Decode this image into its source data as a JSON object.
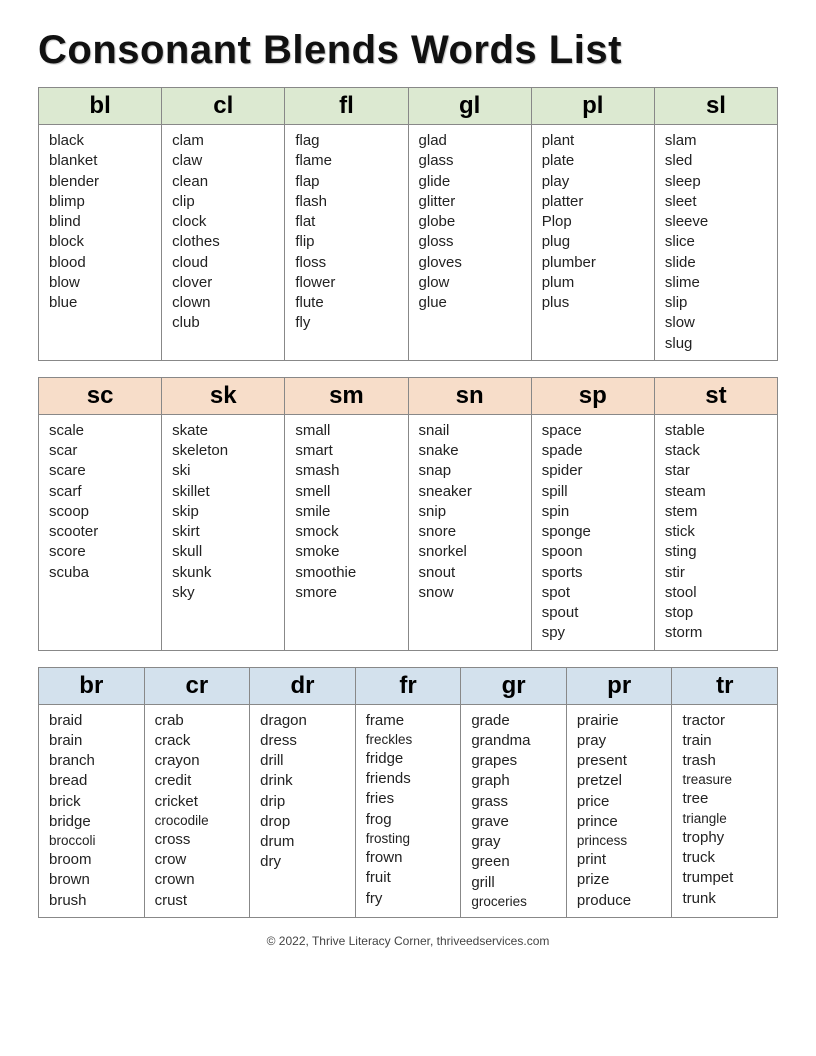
{
  "title": "Consonant Blends Words List",
  "sections": [
    {
      "header_bg": "#dce9d1",
      "columns": [
        {
          "label": "bl",
          "words": [
            "black",
            "blanket",
            "blender",
            "blimp",
            "blind",
            "block",
            "blood",
            "blow",
            "blue"
          ]
        },
        {
          "label": "cl",
          "words": [
            "clam",
            "claw",
            "clean",
            "clip",
            "clock",
            "clothes",
            "cloud",
            "clover",
            "clown",
            "club"
          ]
        },
        {
          "label": "fl",
          "words": [
            "flag",
            "flame",
            "flap",
            "flash",
            "flat",
            "flip",
            "floss",
            "flower",
            "flute",
            "fly"
          ]
        },
        {
          "label": "gl",
          "words": [
            "glad",
            "glass",
            "glide",
            "glitter",
            "globe",
            "gloss",
            "gloves",
            "glow",
            "glue"
          ]
        },
        {
          "label": "pl",
          "words": [
            "plant",
            "plate",
            "play",
            "platter",
            "Plop",
            "plug",
            "plumber",
            "plum",
            "plus"
          ]
        },
        {
          "label": "sl",
          "words": [
            "slam",
            "sled",
            "sleep",
            "sleet",
            "sleeve",
            "slice",
            "slide",
            "slime",
            "slip",
            "slow",
            "slug"
          ]
        }
      ]
    },
    {
      "header_bg": "#f7ddc9",
      "columns": [
        {
          "label": "sc",
          "words": [
            "scale",
            "scar",
            "scare",
            "scarf",
            "scoop",
            "scooter",
            "score",
            "scuba"
          ]
        },
        {
          "label": "sk",
          "words": [
            "skate",
            "skeleton",
            "ski",
            "skillet",
            "skip",
            "skirt",
            "skull",
            "skunk",
            "sky"
          ]
        },
        {
          "label": "sm",
          "words": [
            "small",
            "smart",
            "smash",
            "smell",
            "smile",
            "smock",
            "smoke",
            "smoothie",
            "smore"
          ]
        },
        {
          "label": "sn",
          "words": [
            "snail",
            "snake",
            "snap",
            "sneaker",
            "snip",
            "snore",
            "snorkel",
            "snout",
            "snow"
          ]
        },
        {
          "label": "sp",
          "words": [
            "space",
            "spade",
            "spider",
            "spill",
            "spin",
            "sponge",
            "spoon",
            "sports",
            "spot",
            "spout",
            "spy"
          ]
        },
        {
          "label": "st",
          "words": [
            "stable",
            "stack",
            "star",
            "steam",
            "stem",
            "stick",
            "sting",
            "stir",
            "stool",
            "stop",
            "storm"
          ]
        }
      ]
    },
    {
      "header_bg": "#d3e1ed",
      "columns": [
        {
          "label": "br",
          "words": [
            "braid",
            "brain",
            "branch",
            "bread",
            "brick",
            "bridge",
            "broccoli",
            "broom",
            "brown",
            "brush"
          ]
        },
        {
          "label": "cr",
          "words": [
            "crab",
            "crack",
            "crayon",
            "credit",
            "cricket",
            "crocodile",
            "cross",
            "crow",
            "crown",
            "crust"
          ]
        },
        {
          "label": "dr",
          "words": [
            "dragon",
            "dress",
            "drill",
            "drink",
            "drip",
            "drop",
            "drum",
            "dry"
          ]
        },
        {
          "label": "fr",
          "words": [
            "frame",
            "freckles",
            "fridge",
            "friends",
            "fries",
            "frog",
            "frosting",
            "frown",
            "fruit",
            "fry"
          ]
        },
        {
          "label": "gr",
          "words": [
            "grade",
            "grandma",
            "grapes",
            "graph",
            "grass",
            "grave",
            "gray",
            "green",
            "grill",
            "groceries"
          ]
        },
        {
          "label": "pr",
          "words": [
            "prairie",
            "pray",
            "present",
            "pretzel",
            "price",
            "prince",
            "princess",
            "print",
            "prize",
            "produce"
          ]
        },
        {
          "label": "tr",
          "words": [
            "tractor",
            "train",
            "trash",
            "treasure",
            "tree",
            "triangle",
            "trophy",
            "truck",
            "trumpet",
            "trunk"
          ]
        }
      ]
    }
  ],
  "footer": "© 2022, Thrive Literacy Corner, thriveedservices.com",
  "small_word_threshold": 8
}
